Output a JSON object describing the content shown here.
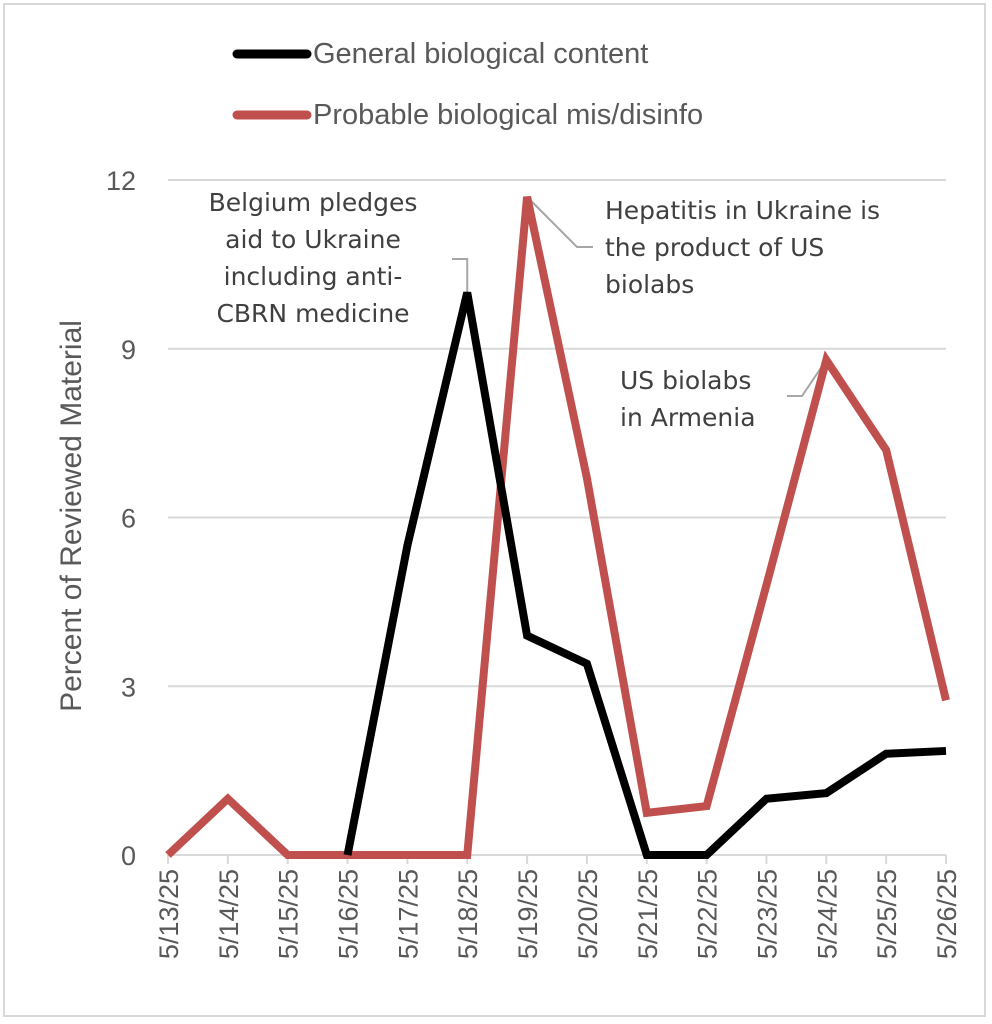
{
  "chart_data": {
    "type": "line",
    "title": "",
    "xlabel": "",
    "ylabel": "Percent of Reviewed Material",
    "ylim": [
      0,
      12
    ],
    "yticks": [
      0,
      3,
      6,
      9,
      12
    ],
    "grid": true,
    "legend_position": "top",
    "categories": [
      "5/13/25",
      "5/14/25",
      "5/15/25",
      "5/16/25",
      "5/17/25",
      "5/18/25",
      "5/19/25",
      "5/20/25",
      "5/21/25",
      "5/22/25",
      "5/23/25",
      "5/24/25",
      "5/25/25",
      "5/26/25"
    ],
    "series": [
      {
        "name": "General biological content",
        "color": "#000000",
        "values": [
          null,
          null,
          null,
          0,
          5.5,
          10.0,
          3.9,
          3.4,
          0,
          0,
          1.0,
          1.1,
          1.8,
          1.85
        ]
      },
      {
        "name": "Probable biological mis/disinfo",
        "color": "#c0504d",
        "values": [
          0,
          1.0,
          0,
          0,
          0,
          0,
          11.7,
          6.7,
          0.75,
          0.87,
          4.8,
          8.8,
          7.2,
          2.75
        ]
      }
    ],
    "annotations": [
      {
        "lines": [
          "Belgium pledges",
          "aid to Ukraine",
          "including anti-",
          "CBRN medicine"
        ],
        "series": 0,
        "point": "5/18/25"
      },
      {
        "lines": [
          "Hepatitis in Ukraine is",
          "the product of US",
          "biolabs"
        ],
        "series": 1,
        "point": "5/19/25"
      },
      {
        "lines": [
          "US biolabs",
          "in Armenia"
        ],
        "series": 1,
        "point": "5/24/25"
      }
    ]
  }
}
